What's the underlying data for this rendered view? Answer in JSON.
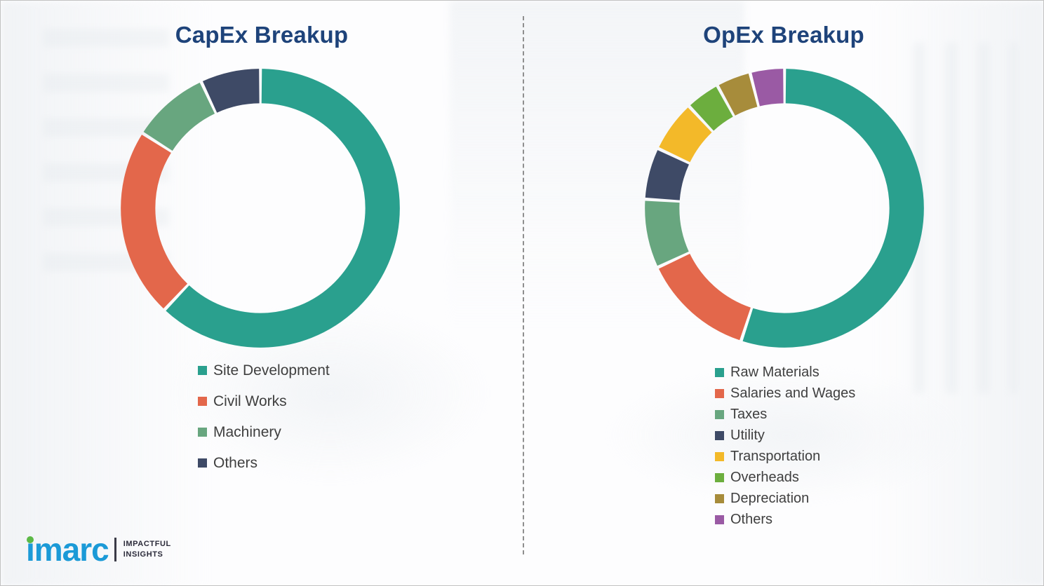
{
  "chart_data": [
    {
      "type": "pie",
      "subtype": "donut",
      "title": "CapEx Breakup",
      "categories": [
        "Site Development",
        "Civil Works",
        "Machinery",
        "Others"
      ],
      "values": [
        62,
        22,
        9,
        7
      ],
      "colors": [
        "#2aa08e",
        "#e3674b",
        "#68a67f",
        "#3e4a66"
      ],
      "legend_position": "bottom-left",
      "start_angle_deg": 0,
      "direction": "clockwise"
    },
    {
      "type": "pie",
      "subtype": "donut",
      "title": "OpEx Breakup",
      "categories": [
        "Raw Materials",
        "Salaries and Wages",
        "Taxes",
        "Utility",
        "Transportation",
        "Overheads",
        "Depreciation",
        "Others"
      ],
      "values": [
        55,
        13,
        8,
        6,
        6,
        4,
        4,
        4
      ],
      "colors": [
        "#2aa08e",
        "#e3674b",
        "#68a67f",
        "#3e4a66",
        "#f3b929",
        "#6cae3e",
        "#a78c3b",
        "#9a5aa4"
      ],
      "legend_position": "bottom-left",
      "start_angle_deg": 0,
      "direction": "clockwise"
    }
  ],
  "branding": {
    "logo_text": "imarc",
    "tagline_line1": "IMPACTFUL",
    "tagline_line2": "INSIGHTS"
  },
  "theme": {
    "title_color": "#1e437a",
    "legend_text_color": "#3f3f3f",
    "logo_blue": "#1b9ad7",
    "logo_dot_green": "#5cb946"
  }
}
